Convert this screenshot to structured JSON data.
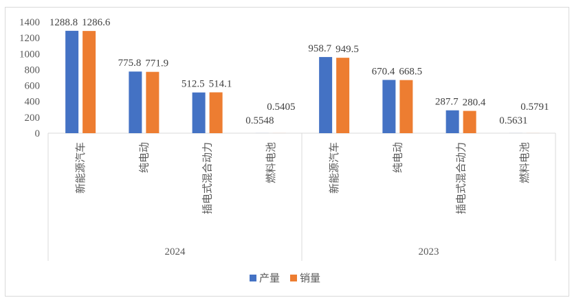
{
  "chart_data": {
    "type": "bar",
    "title": "",
    "xlabel": "",
    "ylabel": "",
    "ylim": [
      0,
      1400
    ],
    "yticks": [
      0,
      200,
      400,
      600,
      800,
      1000,
      1200,
      1400
    ],
    "grid": false,
    "legend_position": "bottom",
    "groups": [
      {
        "label": "2024",
        "categories": [
          "新能源汽车",
          "纯电动",
          "插电式混合动力",
          "燃料电池"
        ]
      },
      {
        "label": "2023",
        "categories": [
          "新能源汽车",
          "纯电动",
          "插电式混合动力",
          "燃料电池"
        ]
      }
    ],
    "series": [
      {
        "name": "产量",
        "color": "#4472c4",
        "values": [
          1288.8,
          775.8,
          512.5,
          0.5548,
          958.7,
          670.4,
          287.7,
          0.5631
        ]
      },
      {
        "name": "销量",
        "color": "#ed7d31",
        "values": [
          1286.6,
          771.9,
          514.1,
          0.5405,
          949.5,
          668.5,
          280.4,
          0.5791
        ]
      }
    ]
  }
}
